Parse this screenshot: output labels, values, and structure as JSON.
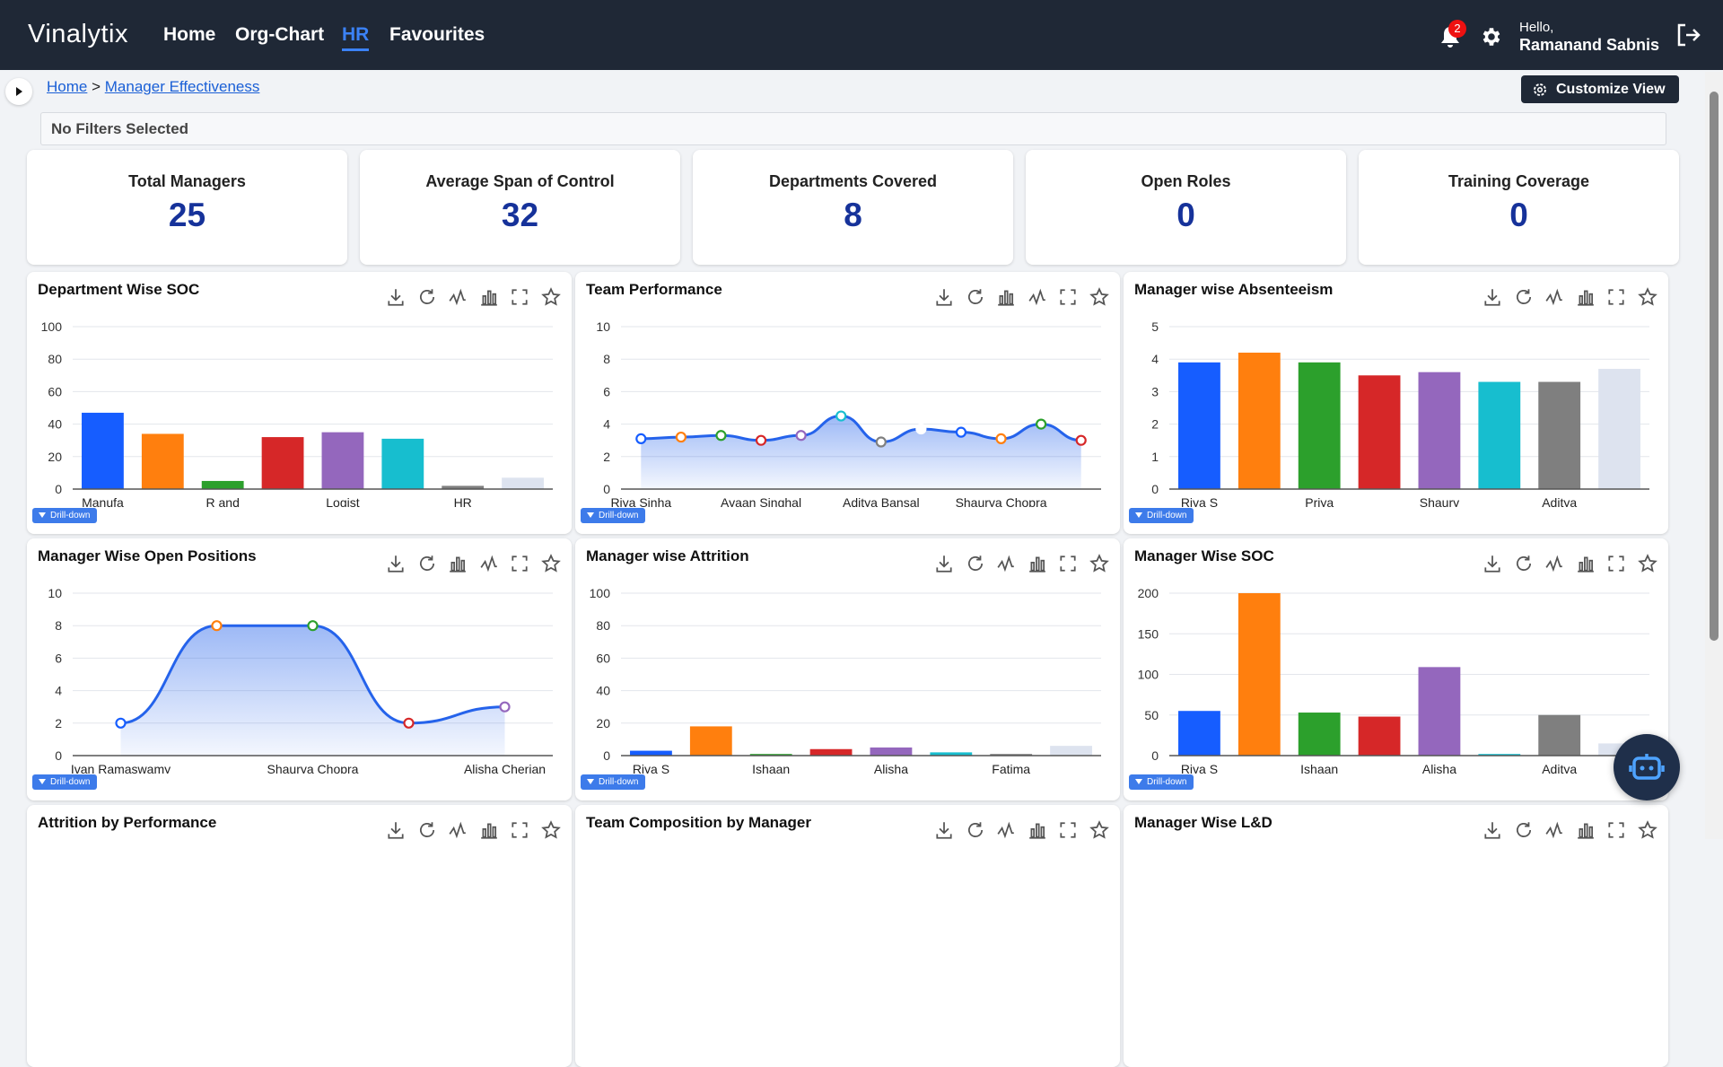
{
  "header": {
    "logo": "Vinalytix",
    "nav": [
      "Home",
      "Org-Chart",
      "HR",
      "Favourites"
    ],
    "active_nav": 2,
    "notification_count": 2,
    "greeting": "Hello,",
    "user": "Ramanand Sabnis"
  },
  "breadcrumb": {
    "items": [
      "Home",
      "Manager Effectiveness"
    ],
    "separator": ">"
  },
  "customize_button": "Customize View",
  "filters": "No Filters Selected",
  "kpis": [
    {
      "label": "Total Managers",
      "value": 25
    },
    {
      "label": "Average Span of Control",
      "value": 32
    },
    {
      "label": "Departments Covered",
      "value": 8
    },
    {
      "label": "Open Roles",
      "value": 0
    },
    {
      "label": "Training Coverage",
      "value": 0
    }
  ],
  "drill_label": "Drill-down",
  "chart_data": [
    {
      "type": "bar",
      "title": "Department Wise SOC",
      "categories": [
        "Manufa",
        null,
        "R and",
        null,
        "Logist",
        null,
        "HR",
        null
      ],
      "values": [
        47,
        34,
        5,
        32,
        35,
        31,
        2,
        7
      ],
      "colors": [
        "#165dff",
        "#ff7f0e",
        "#2ca02c",
        "#d62728",
        "#9467bd",
        "#17becf",
        "#7f7f7f",
        "#dde3ef"
      ],
      "ylim": [
        0,
        100
      ],
      "yticks": [
        0,
        20,
        40,
        60,
        80,
        100
      ],
      "grid": true
    },
    {
      "type": "line",
      "title": "Team Performance",
      "categories": [
        "Riya Sinha",
        null,
        null,
        "Ayaan Singhal",
        null,
        null,
        "Aditya Bansal",
        null,
        null,
        "Shaurya Chopra",
        null,
        null
      ],
      "values": [
        3.1,
        3.2,
        3.3,
        3.0,
        3.3,
        4.5,
        2.9,
        3.7,
        3.5,
        3.1,
        4.0,
        3.0
      ],
      "color": "#2563eb",
      "marker_colors": [
        "#165dff",
        "#ff7f0e",
        "#2ca02c",
        "#d62728",
        "#9467bd",
        "#17becf",
        "#7f7f7f",
        "#ffffff",
        "#165dff",
        "#ff7f0e",
        "#2ca02c",
        "#d62728"
      ],
      "area": true,
      "ylim": [
        0,
        10
      ],
      "yticks": [
        0,
        2,
        4,
        6,
        8,
        10
      ],
      "grid": true
    },
    {
      "type": "bar",
      "title": "Manager wise Absenteeism",
      "categories": [
        "Riya S",
        null,
        "Priya",
        null,
        "Shaury",
        null,
        "Aditya",
        null
      ],
      "values": [
        3.9,
        4.2,
        3.9,
        3.5,
        3.6,
        3.3,
        3.3,
        3.7
      ],
      "colors": [
        "#165dff",
        "#ff7f0e",
        "#2ca02c",
        "#d62728",
        "#9467bd",
        "#17becf",
        "#7f7f7f",
        "#dde3ef"
      ],
      "ylim": [
        0,
        5
      ],
      "yticks": [
        0,
        1,
        2,
        3,
        4,
        5
      ],
      "grid": true
    },
    {
      "type": "line",
      "title": "Manager Wise Open Positions",
      "categories": [
        "Ivan Ramaswamy",
        null,
        "Shaurya Chopra",
        null,
        "Alisha Cherian"
      ],
      "values": [
        2,
        8,
        8,
        2,
        3
      ],
      "color": "#2563eb",
      "marker_colors": [
        "#165dff",
        "#ff7f0e",
        "#2ca02c",
        "#d62728",
        "#9467bd"
      ],
      "area": true,
      "ylim": [
        0,
        10
      ],
      "yticks": [
        0,
        2,
        4,
        6,
        8,
        10
      ],
      "grid": true
    },
    {
      "type": "bar",
      "title": "Manager wise Attrition",
      "categories": [
        "Riya S",
        null,
        "Ishaan",
        null,
        "Alisha",
        null,
        "Fatima",
        null
      ],
      "values": [
        3,
        18,
        1,
        4,
        5,
        2,
        1,
        6
      ],
      "colors": [
        "#165dff",
        "#ff7f0e",
        "#2ca02c",
        "#d62728",
        "#9467bd",
        "#17becf",
        "#7f7f7f",
        "#dde3ef"
      ],
      "ylim": [
        0,
        100
      ],
      "yticks": [
        0,
        20,
        40,
        60,
        80,
        100
      ],
      "grid": true
    },
    {
      "type": "bar",
      "title": "Manager Wise SOC",
      "categories": [
        "Riya S",
        null,
        "Ishaan",
        null,
        "Alisha",
        null,
        "Aditya",
        null
      ],
      "values": [
        55,
        200,
        53,
        48,
        109,
        2,
        50,
        15
      ],
      "colors": [
        "#165dff",
        "#ff7f0e",
        "#2ca02c",
        "#d62728",
        "#9467bd",
        "#17becf",
        "#7f7f7f",
        "#dde3ef"
      ],
      "ylim": [
        0,
        200
      ],
      "yticks": [
        0,
        50,
        100,
        150,
        200
      ],
      "grid": true
    }
  ],
  "more_panels": [
    "Attrition by Performance",
    "Team Composition by Manager",
    "Manager Wise L&D"
  ]
}
